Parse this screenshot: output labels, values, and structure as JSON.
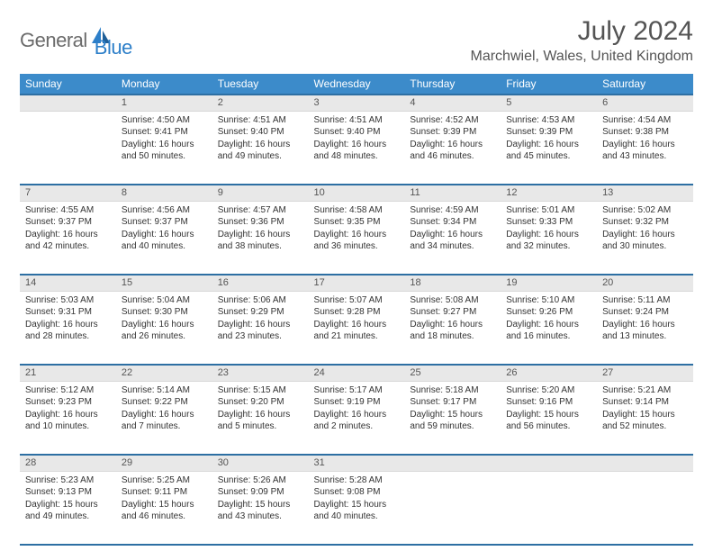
{
  "brand": {
    "general": "General",
    "blue": "Blue"
  },
  "title": "July 2024",
  "location": "Marchwiel, Wales, United Kingdom",
  "colors": {
    "header_bg": "#3c8bca",
    "header_border": "#2d6fa3",
    "daynum_bg": "#e8e8e8",
    "text": "#333333",
    "title_text": "#545454",
    "logo_gray": "#6b6b6b",
    "logo_blue": "#2d7fc9"
  },
  "weekdays": [
    "Sunday",
    "Monday",
    "Tuesday",
    "Wednesday",
    "Thursday",
    "Friday",
    "Saturday"
  ],
  "weeks": [
    [
      {
        "n": "",
        "sr": "",
        "ss": "",
        "dl": ""
      },
      {
        "n": "1",
        "sr": "Sunrise: 4:50 AM",
        "ss": "Sunset: 9:41 PM",
        "dl": "Daylight: 16 hours and 50 minutes."
      },
      {
        "n": "2",
        "sr": "Sunrise: 4:51 AM",
        "ss": "Sunset: 9:40 PM",
        "dl": "Daylight: 16 hours and 49 minutes."
      },
      {
        "n": "3",
        "sr": "Sunrise: 4:51 AM",
        "ss": "Sunset: 9:40 PM",
        "dl": "Daylight: 16 hours and 48 minutes."
      },
      {
        "n": "4",
        "sr": "Sunrise: 4:52 AM",
        "ss": "Sunset: 9:39 PM",
        "dl": "Daylight: 16 hours and 46 minutes."
      },
      {
        "n": "5",
        "sr": "Sunrise: 4:53 AM",
        "ss": "Sunset: 9:39 PM",
        "dl": "Daylight: 16 hours and 45 minutes."
      },
      {
        "n": "6",
        "sr": "Sunrise: 4:54 AM",
        "ss": "Sunset: 9:38 PM",
        "dl": "Daylight: 16 hours and 43 minutes."
      }
    ],
    [
      {
        "n": "7",
        "sr": "Sunrise: 4:55 AM",
        "ss": "Sunset: 9:37 PM",
        "dl": "Daylight: 16 hours and 42 minutes."
      },
      {
        "n": "8",
        "sr": "Sunrise: 4:56 AM",
        "ss": "Sunset: 9:37 PM",
        "dl": "Daylight: 16 hours and 40 minutes."
      },
      {
        "n": "9",
        "sr": "Sunrise: 4:57 AM",
        "ss": "Sunset: 9:36 PM",
        "dl": "Daylight: 16 hours and 38 minutes."
      },
      {
        "n": "10",
        "sr": "Sunrise: 4:58 AM",
        "ss": "Sunset: 9:35 PM",
        "dl": "Daylight: 16 hours and 36 minutes."
      },
      {
        "n": "11",
        "sr": "Sunrise: 4:59 AM",
        "ss": "Sunset: 9:34 PM",
        "dl": "Daylight: 16 hours and 34 minutes."
      },
      {
        "n": "12",
        "sr": "Sunrise: 5:01 AM",
        "ss": "Sunset: 9:33 PM",
        "dl": "Daylight: 16 hours and 32 minutes."
      },
      {
        "n": "13",
        "sr": "Sunrise: 5:02 AM",
        "ss": "Sunset: 9:32 PM",
        "dl": "Daylight: 16 hours and 30 minutes."
      }
    ],
    [
      {
        "n": "14",
        "sr": "Sunrise: 5:03 AM",
        "ss": "Sunset: 9:31 PM",
        "dl": "Daylight: 16 hours and 28 minutes."
      },
      {
        "n": "15",
        "sr": "Sunrise: 5:04 AM",
        "ss": "Sunset: 9:30 PM",
        "dl": "Daylight: 16 hours and 26 minutes."
      },
      {
        "n": "16",
        "sr": "Sunrise: 5:06 AM",
        "ss": "Sunset: 9:29 PM",
        "dl": "Daylight: 16 hours and 23 minutes."
      },
      {
        "n": "17",
        "sr": "Sunrise: 5:07 AM",
        "ss": "Sunset: 9:28 PM",
        "dl": "Daylight: 16 hours and 21 minutes."
      },
      {
        "n": "18",
        "sr": "Sunrise: 5:08 AM",
        "ss": "Sunset: 9:27 PM",
        "dl": "Daylight: 16 hours and 18 minutes."
      },
      {
        "n": "19",
        "sr": "Sunrise: 5:10 AM",
        "ss": "Sunset: 9:26 PM",
        "dl": "Daylight: 16 hours and 16 minutes."
      },
      {
        "n": "20",
        "sr": "Sunrise: 5:11 AM",
        "ss": "Sunset: 9:24 PM",
        "dl": "Daylight: 16 hours and 13 minutes."
      }
    ],
    [
      {
        "n": "21",
        "sr": "Sunrise: 5:12 AM",
        "ss": "Sunset: 9:23 PM",
        "dl": "Daylight: 16 hours and 10 minutes."
      },
      {
        "n": "22",
        "sr": "Sunrise: 5:14 AM",
        "ss": "Sunset: 9:22 PM",
        "dl": "Daylight: 16 hours and 7 minutes."
      },
      {
        "n": "23",
        "sr": "Sunrise: 5:15 AM",
        "ss": "Sunset: 9:20 PM",
        "dl": "Daylight: 16 hours and 5 minutes."
      },
      {
        "n": "24",
        "sr": "Sunrise: 5:17 AM",
        "ss": "Sunset: 9:19 PM",
        "dl": "Daylight: 16 hours and 2 minutes."
      },
      {
        "n": "25",
        "sr": "Sunrise: 5:18 AM",
        "ss": "Sunset: 9:17 PM",
        "dl": "Daylight: 15 hours and 59 minutes."
      },
      {
        "n": "26",
        "sr": "Sunrise: 5:20 AM",
        "ss": "Sunset: 9:16 PM",
        "dl": "Daylight: 15 hours and 56 minutes."
      },
      {
        "n": "27",
        "sr": "Sunrise: 5:21 AM",
        "ss": "Sunset: 9:14 PM",
        "dl": "Daylight: 15 hours and 52 minutes."
      }
    ],
    [
      {
        "n": "28",
        "sr": "Sunrise: 5:23 AM",
        "ss": "Sunset: 9:13 PM",
        "dl": "Daylight: 15 hours and 49 minutes."
      },
      {
        "n": "29",
        "sr": "Sunrise: 5:25 AM",
        "ss": "Sunset: 9:11 PM",
        "dl": "Daylight: 15 hours and 46 minutes."
      },
      {
        "n": "30",
        "sr": "Sunrise: 5:26 AM",
        "ss": "Sunset: 9:09 PM",
        "dl": "Daylight: 15 hours and 43 minutes."
      },
      {
        "n": "31",
        "sr": "Sunrise: 5:28 AM",
        "ss": "Sunset: 9:08 PM",
        "dl": "Daylight: 15 hours and 40 minutes."
      },
      {
        "n": "",
        "sr": "",
        "ss": "",
        "dl": ""
      },
      {
        "n": "",
        "sr": "",
        "ss": "",
        "dl": ""
      },
      {
        "n": "",
        "sr": "",
        "ss": "",
        "dl": ""
      }
    ]
  ]
}
